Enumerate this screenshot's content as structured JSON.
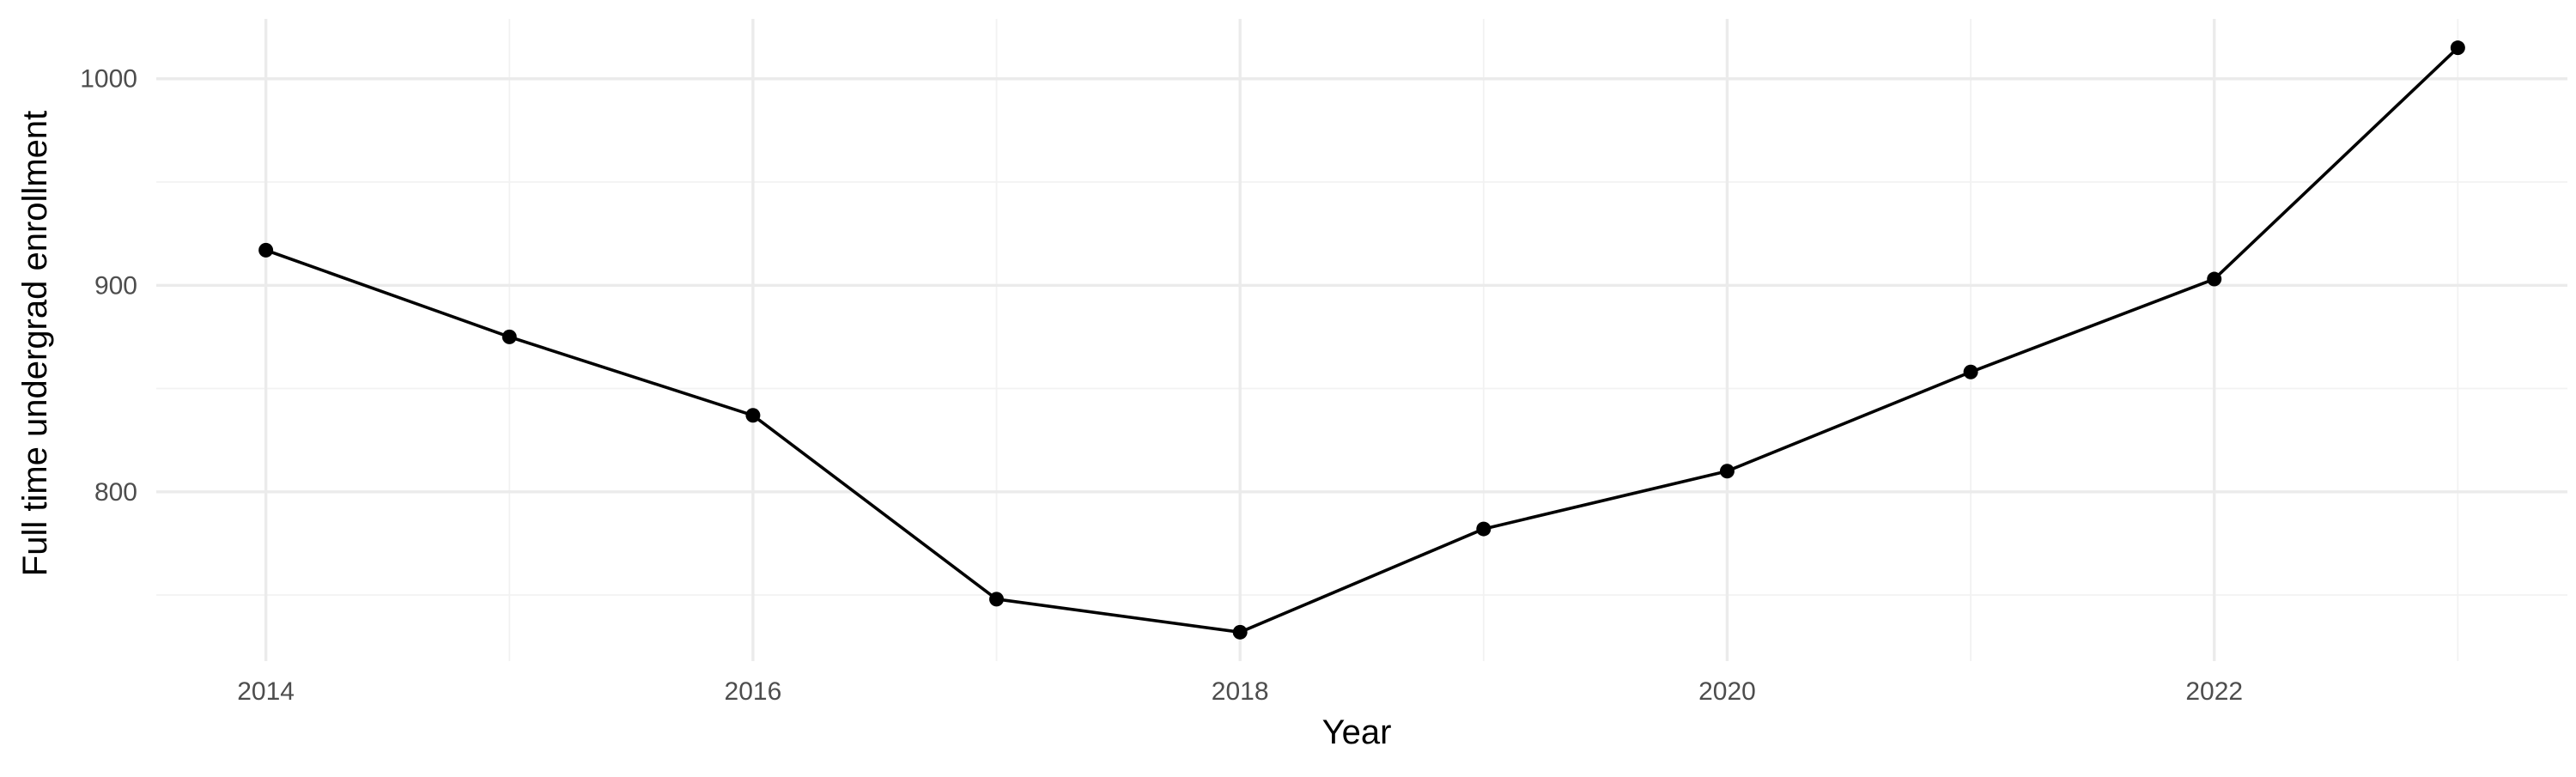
{
  "chart_data": {
    "type": "line",
    "title": "",
    "xlabel": "Year",
    "ylabel": "Full time undergrad enrollment",
    "x": [
      2014,
      2015,
      2016,
      2017,
      2018,
      2019,
      2020,
      2021,
      2022,
      2023
    ],
    "series": [
      {
        "values": [
          917,
          875,
          837,
          748,
          732,
          782,
          810,
          858,
          903,
          1015
        ]
      }
    ],
    "xlim": [
      2013.55,
      2023.45
    ],
    "ylim": [
      718,
      1029
    ],
    "x_major_ticks": [
      2014,
      2016,
      2018,
      2020,
      2022
    ],
    "x_tick_labels": [
      "2014",
      "2016",
      "2018",
      "2020",
      "2022"
    ],
    "x_minor_ticks": [
      2015,
      2017,
      2019,
      2021,
      2023
    ],
    "y_major_ticks": [
      800,
      900,
      1000
    ],
    "y_tick_labels": [
      "800",
      "900",
      "1000"
    ],
    "y_minor_ticks": [
      750,
      850,
      950
    ],
    "grid": true,
    "legend": "none",
    "colors": {
      "line": "#000000",
      "point": "#000000",
      "grid_major": "#ebebeb",
      "grid_minor": "#f2f2f2",
      "tick_text": "#4d4d4d"
    }
  }
}
